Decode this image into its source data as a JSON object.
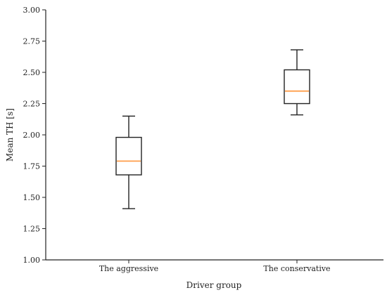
{
  "chart_data": {
    "type": "box",
    "title": "",
    "xlabel": "Driver group",
    "ylabel": "Mean TH [s]",
    "ylim": [
      1.0,
      3.0
    ],
    "yticks": [
      "1.00",
      "1.25",
      "1.50",
      "1.75",
      "2.00",
      "2.25",
      "2.50",
      "2.75",
      "3.00"
    ],
    "yticks_values": [
      1.0,
      1.25,
      1.5,
      1.75,
      2.0,
      2.25,
      2.5,
      2.75,
      3.0
    ],
    "categories": [
      "The aggressive",
      "The conservative"
    ],
    "boxes": [
      {
        "whisker_low": 1.41,
        "q1": 1.68,
        "median": 1.79,
        "q3": 1.98,
        "whisker_high": 2.15
      },
      {
        "whisker_low": 2.16,
        "q1": 2.25,
        "median": 2.35,
        "q3": 2.52,
        "whisker_high": 2.68
      }
    ],
    "grid": false,
    "median_color": "#ff9e4a",
    "line_color": "#222222"
  }
}
